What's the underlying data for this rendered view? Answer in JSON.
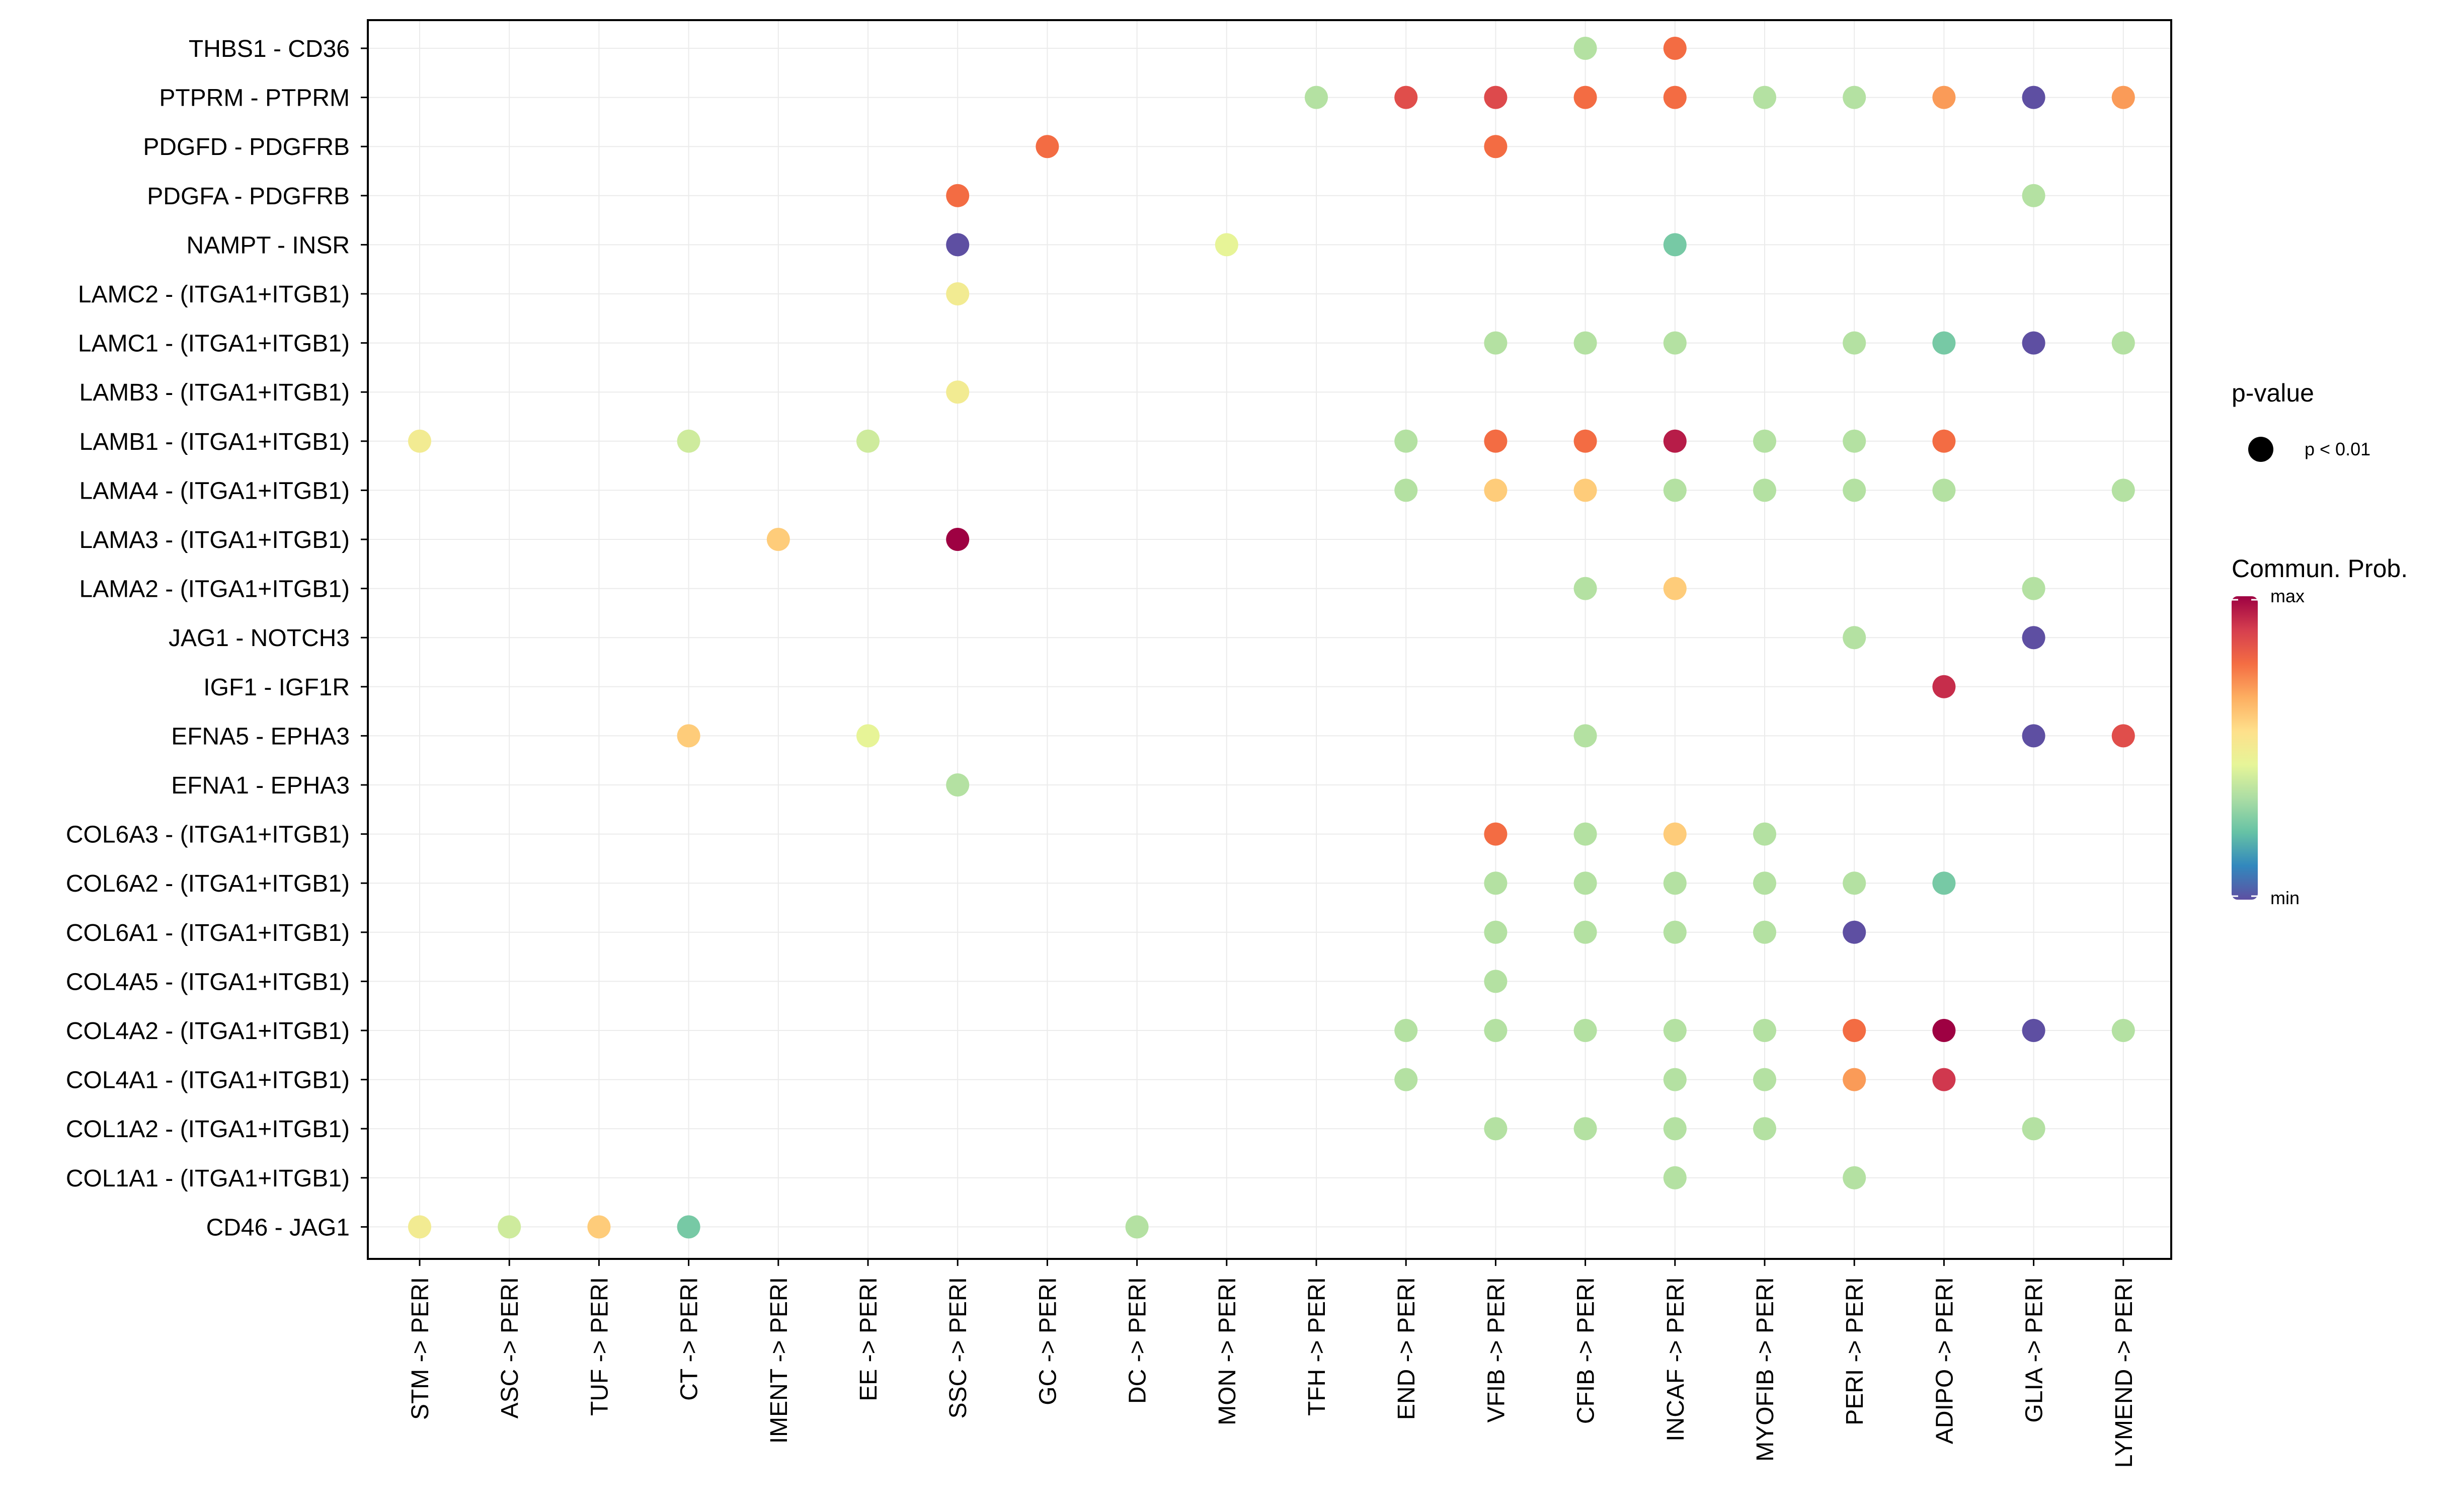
{
  "chart_data": {
    "type": "dot",
    "title": "",
    "xlabel": "",
    "ylabel": "",
    "x_categories": [
      "STM -> PERI",
      "ASC -> PERI",
      "TUF -> PERI",
      "CT -> PERI",
      "IMENT -> PERI",
      "EE -> PERI",
      "SSC -> PERI",
      "GC -> PERI",
      "DC -> PERI",
      "MON -> PERI",
      "TFH -> PERI",
      "END -> PERI",
      "VFIB -> PERI",
      "CFIB -> PERI",
      "INCAF -> PERI",
      "MYOFIB -> PERI",
      "PERI -> PERI",
      "ADIPO -> PERI",
      "GLIA -> PERI",
      "LYMEND -> PERI"
    ],
    "y_categories": [
      "THBS1 - CD36",
      "PTPRM - PTPRM",
      "PDGFD - PDGFRB",
      "PDGFA - PDGFRB",
      "NAMPT - INSR",
      "LAMC2 - (ITGA1+ITGB1)",
      "LAMC1 - (ITGA1+ITGB1)",
      "LAMB3 - (ITGA1+ITGB1)",
      "LAMB1 - (ITGA1+ITGB1)",
      "LAMA4 - (ITGA1+ITGB1)",
      "LAMA3 - (ITGA1+ITGB1)",
      "LAMA2 - (ITGA1+ITGB1)",
      "JAG1 - NOTCH3",
      "IGF1 - IGF1R",
      "EFNA5 - EPHA3",
      "EFNA1 - EPHA3",
      "COL6A3 - (ITGA1+ITGB1)",
      "COL6A2 - (ITGA1+ITGB1)",
      "COL6A1 - (ITGA1+ITGB1)",
      "COL4A5 - (ITGA1+ITGB1)",
      "COL4A2 - (ITGA1+ITGB1)",
      "COL4A1 - (ITGA1+ITGB1)",
      "COL1A2 - (ITGA1+ITGB1)",
      "COL1A1 - (ITGA1+ITGB1)",
      "CD46 - JAG1"
    ],
    "points": [
      {
        "x": "CFIB -> PERI",
        "y": "THBS1 - CD36",
        "prob": 0.35
      },
      {
        "x": "INCAF -> PERI",
        "y": "THBS1 - CD36",
        "prob": 0.78
      },
      {
        "x": "TFH -> PERI",
        "y": "PTPRM - PTPRM",
        "prob": 0.35
      },
      {
        "x": "END -> PERI",
        "y": "PTPRM - PTPRM",
        "prob": 0.85
      },
      {
        "x": "VFIB -> PERI",
        "y": "PTPRM - PTPRM",
        "prob": 0.86
      },
      {
        "x": "CFIB -> PERI",
        "y": "PTPRM - PTPRM",
        "prob": 0.78
      },
      {
        "x": "INCAF -> PERI",
        "y": "PTPRM - PTPRM",
        "prob": 0.78
      },
      {
        "x": "MYOFIB -> PERI",
        "y": "PTPRM - PTPRM",
        "prob": 0.35
      },
      {
        "x": "PERI -> PERI",
        "y": "PTPRM - PTPRM",
        "prob": 0.35
      },
      {
        "x": "ADIPO -> PERI",
        "y": "PTPRM - PTPRM",
        "prob": 0.7
      },
      {
        "x": "GLIA -> PERI",
        "y": "PTPRM - PTPRM",
        "prob": 0.0
      },
      {
        "x": "LYMEND -> PERI",
        "y": "PTPRM - PTPRM",
        "prob": 0.7
      },
      {
        "x": "GC -> PERI",
        "y": "PDGFD - PDGFRB",
        "prob": 0.78
      },
      {
        "x": "VFIB -> PERI",
        "y": "PDGFD - PDGFRB",
        "prob": 0.78
      },
      {
        "x": "SSC -> PERI",
        "y": "PDGFA - PDGFRB",
        "prob": 0.78
      },
      {
        "x": "GLIA -> PERI",
        "y": "PDGFA - PDGFRB",
        "prob": 0.35
      },
      {
        "x": "SSC -> PERI",
        "y": "NAMPT - INSR",
        "prob": 0.0
      },
      {
        "x": "MON -> PERI",
        "y": "NAMPT - INSR",
        "prob": 0.45
      },
      {
        "x": "INCAF -> PERI",
        "y": "NAMPT - INSR",
        "prob": 0.25
      },
      {
        "x": "SSC -> PERI",
        "y": "LAMC2 - (ITGA1+ITGB1)",
        "prob": 0.5
      },
      {
        "x": "VFIB -> PERI",
        "y": "LAMC1 - (ITGA1+ITGB1)",
        "prob": 0.35
      },
      {
        "x": "CFIB -> PERI",
        "y": "LAMC1 - (ITGA1+ITGB1)",
        "prob": 0.35
      },
      {
        "x": "INCAF -> PERI",
        "y": "LAMC1 - (ITGA1+ITGB1)",
        "prob": 0.35
      },
      {
        "x": "PERI -> PERI",
        "y": "LAMC1 - (ITGA1+ITGB1)",
        "prob": 0.35
      },
      {
        "x": "ADIPO -> PERI",
        "y": "LAMC1 - (ITGA1+ITGB1)",
        "prob": 0.25
      },
      {
        "x": "GLIA -> PERI",
        "y": "LAMC1 - (ITGA1+ITGB1)",
        "prob": 0.0
      },
      {
        "x": "LYMEND -> PERI",
        "y": "LAMC1 - (ITGA1+ITGB1)",
        "prob": 0.35
      },
      {
        "x": "SSC -> PERI",
        "y": "LAMB3 - (ITGA1+ITGB1)",
        "prob": 0.5
      },
      {
        "x": "STM -> PERI",
        "y": "LAMB1 - (ITGA1+ITGB1)",
        "prob": 0.5
      },
      {
        "x": "CT -> PERI",
        "y": "LAMB1 - (ITGA1+ITGB1)",
        "prob": 0.4
      },
      {
        "x": "EE -> PERI",
        "y": "LAMB1 - (ITGA1+ITGB1)",
        "prob": 0.4
      },
      {
        "x": "END -> PERI",
        "y": "LAMB1 - (ITGA1+ITGB1)",
        "prob": 0.35
      },
      {
        "x": "VFIB -> PERI",
        "y": "LAMB1 - (ITGA1+ITGB1)",
        "prob": 0.78
      },
      {
        "x": "CFIB -> PERI",
        "y": "LAMB1 - (ITGA1+ITGB1)",
        "prob": 0.78
      },
      {
        "x": "INCAF -> PERI",
        "y": "LAMB1 - (ITGA1+ITGB1)",
        "prob": 0.95
      },
      {
        "x": "MYOFIB -> PERI",
        "y": "LAMB1 - (ITGA1+ITGB1)",
        "prob": 0.35
      },
      {
        "x": "PERI -> PERI",
        "y": "LAMB1 - (ITGA1+ITGB1)",
        "prob": 0.35
      },
      {
        "x": "ADIPO -> PERI",
        "y": "LAMB1 - (ITGA1+ITGB1)",
        "prob": 0.78
      },
      {
        "x": "END -> PERI",
        "y": "LAMA4 - (ITGA1+ITGB1)",
        "prob": 0.35
      },
      {
        "x": "VFIB -> PERI",
        "y": "LAMA4 - (ITGA1+ITGB1)",
        "prob": 0.6
      },
      {
        "x": "CFIB -> PERI",
        "y": "LAMA4 - (ITGA1+ITGB1)",
        "prob": 0.6
      },
      {
        "x": "INCAF -> PERI",
        "y": "LAMA4 - (ITGA1+ITGB1)",
        "prob": 0.35
      },
      {
        "x": "MYOFIB -> PERI",
        "y": "LAMA4 - (ITGA1+ITGB1)",
        "prob": 0.35
      },
      {
        "x": "PERI -> PERI",
        "y": "LAMA4 - (ITGA1+ITGB1)",
        "prob": 0.35
      },
      {
        "x": "ADIPO -> PERI",
        "y": "LAMA4 - (ITGA1+ITGB1)",
        "prob": 0.35
      },
      {
        "x": "LYMEND -> PERI",
        "y": "LAMA4 - (ITGA1+ITGB1)",
        "prob": 0.35
      },
      {
        "x": "IMENT -> PERI",
        "y": "LAMA3 - (ITGA1+ITGB1)",
        "prob": 0.6
      },
      {
        "x": "SSC -> PERI",
        "y": "LAMA3 - (ITGA1+ITGB1)",
        "prob": 1.0
      },
      {
        "x": "CFIB -> PERI",
        "y": "LAMA2 - (ITGA1+ITGB1)",
        "prob": 0.35
      },
      {
        "x": "INCAF -> PERI",
        "y": "LAMA2 - (ITGA1+ITGB1)",
        "prob": 0.6
      },
      {
        "x": "GLIA -> PERI",
        "y": "LAMA2 - (ITGA1+ITGB1)",
        "prob": 0.35
      },
      {
        "x": "PERI -> PERI",
        "y": "JAG1 - NOTCH3",
        "prob": 0.35
      },
      {
        "x": "GLIA -> PERI",
        "y": "JAG1 - NOTCH3",
        "prob": 0.0
      },
      {
        "x": "ADIPO -> PERI",
        "y": "IGF1 - IGF1R",
        "prob": 0.92
      },
      {
        "x": "CT -> PERI",
        "y": "EFNA5 - EPHA3",
        "prob": 0.6
      },
      {
        "x": "EE -> PERI",
        "y": "EFNA5 - EPHA3",
        "prob": 0.45
      },
      {
        "x": "CFIB -> PERI",
        "y": "EFNA5 - EPHA3",
        "prob": 0.35
      },
      {
        "x": "GLIA -> PERI",
        "y": "EFNA5 - EPHA3",
        "prob": 0.0
      },
      {
        "x": "LYMEND -> PERI",
        "y": "EFNA5 - EPHA3",
        "prob": 0.85
      },
      {
        "x": "SSC -> PERI",
        "y": "EFNA1 - EPHA3",
        "prob": 0.35
      },
      {
        "x": "VFIB -> PERI",
        "y": "COL6A3 - (ITGA1+ITGB1)",
        "prob": 0.78
      },
      {
        "x": "CFIB -> PERI",
        "y": "COL6A3 - (ITGA1+ITGB1)",
        "prob": 0.35
      },
      {
        "x": "INCAF -> PERI",
        "y": "COL6A3 - (ITGA1+ITGB1)",
        "prob": 0.6
      },
      {
        "x": "MYOFIB -> PERI",
        "y": "COL6A3 - (ITGA1+ITGB1)",
        "prob": 0.35
      },
      {
        "x": "VFIB -> PERI",
        "y": "COL6A2 - (ITGA1+ITGB1)",
        "prob": 0.35
      },
      {
        "x": "CFIB -> PERI",
        "y": "COL6A2 - (ITGA1+ITGB1)",
        "prob": 0.35
      },
      {
        "x": "INCAF -> PERI",
        "y": "COL6A2 - (ITGA1+ITGB1)",
        "prob": 0.35
      },
      {
        "x": "MYOFIB -> PERI",
        "y": "COL6A2 - (ITGA1+ITGB1)",
        "prob": 0.35
      },
      {
        "x": "PERI -> PERI",
        "y": "COL6A2 - (ITGA1+ITGB1)",
        "prob": 0.35
      },
      {
        "x": "ADIPO -> PERI",
        "y": "COL6A2 - (ITGA1+ITGB1)",
        "prob": 0.25
      },
      {
        "x": "VFIB -> PERI",
        "y": "COL6A1 - (ITGA1+ITGB1)",
        "prob": 0.35
      },
      {
        "x": "CFIB -> PERI",
        "y": "COL6A1 - (ITGA1+ITGB1)",
        "prob": 0.35
      },
      {
        "x": "INCAF -> PERI",
        "y": "COL6A1 - (ITGA1+ITGB1)",
        "prob": 0.35
      },
      {
        "x": "MYOFIB -> PERI",
        "y": "COL6A1 - (ITGA1+ITGB1)",
        "prob": 0.35
      },
      {
        "x": "PERI -> PERI",
        "y": "COL6A1 - (ITGA1+ITGB1)",
        "prob": 0.0
      },
      {
        "x": "VFIB -> PERI",
        "y": "COL4A5 - (ITGA1+ITGB1)",
        "prob": 0.35
      },
      {
        "x": "END -> PERI",
        "y": "COL4A2 - (ITGA1+ITGB1)",
        "prob": 0.35
      },
      {
        "x": "VFIB -> PERI",
        "y": "COL4A2 - (ITGA1+ITGB1)",
        "prob": 0.35
      },
      {
        "x": "CFIB -> PERI",
        "y": "COL4A2 - (ITGA1+ITGB1)",
        "prob": 0.35
      },
      {
        "x": "INCAF -> PERI",
        "y": "COL4A2 - (ITGA1+ITGB1)",
        "prob": 0.35
      },
      {
        "x": "MYOFIB -> PERI",
        "y": "COL4A2 - (ITGA1+ITGB1)",
        "prob": 0.35
      },
      {
        "x": "PERI -> PERI",
        "y": "COL4A2 - (ITGA1+ITGB1)",
        "prob": 0.78
      },
      {
        "x": "ADIPO -> PERI",
        "y": "COL4A2 - (ITGA1+ITGB1)",
        "prob": 1.0
      },
      {
        "x": "GLIA -> PERI",
        "y": "COL4A2 - (ITGA1+ITGB1)",
        "prob": 0.0
      },
      {
        "x": "LYMEND -> PERI",
        "y": "COL4A2 - (ITGA1+ITGB1)",
        "prob": 0.35
      },
      {
        "x": "END -> PERI",
        "y": "COL4A1 - (ITGA1+ITGB1)",
        "prob": 0.35
      },
      {
        "x": "INCAF -> PERI",
        "y": "COL4A1 - (ITGA1+ITGB1)",
        "prob": 0.35
      },
      {
        "x": "MYOFIB -> PERI",
        "y": "COL4A1 - (ITGA1+ITGB1)",
        "prob": 0.35
      },
      {
        "x": "PERI -> PERI",
        "y": "COL4A1 - (ITGA1+ITGB1)",
        "prob": 0.7
      },
      {
        "x": "ADIPO -> PERI",
        "y": "COL4A1 - (ITGA1+ITGB1)",
        "prob": 0.9
      },
      {
        "x": "VFIB -> PERI",
        "y": "COL1A2 - (ITGA1+ITGB1)",
        "prob": 0.35
      },
      {
        "x": "CFIB -> PERI",
        "y": "COL1A2 - (ITGA1+ITGB1)",
        "prob": 0.35
      },
      {
        "x": "INCAF -> PERI",
        "y": "COL1A2 - (ITGA1+ITGB1)",
        "prob": 0.35
      },
      {
        "x": "MYOFIB -> PERI",
        "y": "COL1A2 - (ITGA1+ITGB1)",
        "prob": 0.35
      },
      {
        "x": "GLIA -> PERI",
        "y": "COL1A2 - (ITGA1+ITGB1)",
        "prob": 0.35
      },
      {
        "x": "INCAF -> PERI",
        "y": "COL1A1 - (ITGA1+ITGB1)",
        "prob": 0.35
      },
      {
        "x": "PERI -> PERI",
        "y": "COL1A1 - (ITGA1+ITGB1)",
        "prob": 0.35
      },
      {
        "x": "STM -> PERI",
        "y": "CD46 - JAG1",
        "prob": 0.5
      },
      {
        "x": "ASC -> PERI",
        "y": "CD46 - JAG1",
        "prob": 0.4
      },
      {
        "x": "TUF -> PERI",
        "y": "CD46 - JAG1",
        "prob": 0.6
      },
      {
        "x": "CT -> PERI",
        "y": "CD46 - JAG1",
        "prob": 0.25
      },
      {
        "x": "DC -> PERI",
        "y": "CD46 - JAG1",
        "prob": 0.35
      }
    ],
    "color_scale": {
      "title": "Commun. Prob.",
      "max_label": "max",
      "min_label": "min",
      "stops": [
        "#5e4fa2",
        "#3288bd",
        "#66c2a5",
        "#abdda4",
        "#e6f598",
        "#fee08b",
        "#fdae61",
        "#f46d43",
        "#d53e4f",
        "#9e0142"
      ]
    },
    "pvalue_legend": {
      "title": "p-value",
      "label": "p < 0.01"
    },
    "grid": true
  }
}
